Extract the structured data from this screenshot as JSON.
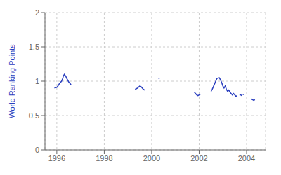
{
  "chart_data": {
    "type": "line",
    "title": "",
    "ylabel": "World Ranking Points",
    "xlabel": "",
    "color": "#2a3fbf",
    "grid": true,
    "xlim": [
      1995.5,
      2004.8
    ],
    "xticks": [
      1996,
      1998,
      2000,
      2002,
      2004
    ],
    "ylim": [
      0,
      2
    ],
    "yticks": [
      0,
      0.5,
      1,
      1.5,
      2
    ],
    "series": [
      {
        "x": [
          1995.9,
          1996.0,
          1996.05,
          1996.1,
          1996.15,
          1996.2,
          1996.25,
          1996.28,
          1996.32,
          1996.38,
          1996.42,
          1996.5,
          1996.6
        ],
        "values": [
          0.9,
          0.91,
          0.93,
          0.96,
          0.98,
          1.0,
          1.04,
          1.08,
          1.1,
          1.07,
          1.04,
          0.99,
          0.95
        ]
      },
      {
        "x": [
          1999.3,
          1999.4,
          1999.5,
          1999.55,
          1999.6,
          1999.65,
          1999.7
        ],
        "values": [
          0.88,
          0.9,
          0.93,
          0.92,
          0.9,
          0.88,
          0.87
        ]
      },
      {
        "x": [
          2000.3,
          2000.32
        ],
        "values": [
          1.03,
          1.04
        ]
      },
      {
        "x": [
          2001.8,
          2001.85,
          2001.9,
          2001.95,
          2002.0,
          2002.05
        ],
        "values": [
          0.84,
          0.82,
          0.8,
          0.79,
          0.8,
          0.81
        ]
      },
      {
        "x": [
          2002.5,
          2002.55,
          2002.6,
          2002.65,
          2002.7,
          2002.75,
          2002.85,
          2002.9,
          2002.95,
          2003.0,
          2003.05,
          2003.1,
          2003.15,
          2003.2,
          2003.25,
          2003.3,
          2003.35,
          2003.4,
          2003.45,
          2003.5,
          2003.55,
          2003.6
        ],
        "values": [
          0.85,
          0.88,
          0.92,
          0.96,
          1.0,
          1.04,
          1.05,
          1.02,
          0.98,
          0.93,
          0.9,
          0.93,
          0.88,
          0.85,
          0.87,
          0.84,
          0.82,
          0.8,
          0.82,
          0.8,
          0.78,
          0.79
        ]
      },
      {
        "x": [
          2003.7,
          2003.75,
          2003.8
        ],
        "values": [
          0.8,
          0.8,
          0.79
        ]
      },
      {
        "x": [
          2003.85,
          2003.87
        ],
        "values": [
          0.81,
          0.8
        ]
      },
      {
        "x": [
          2004.2,
          2004.25,
          2004.3,
          2004.35
        ],
        "values": [
          0.74,
          0.73,
          0.72,
          0.73
        ]
      }
    ]
  }
}
